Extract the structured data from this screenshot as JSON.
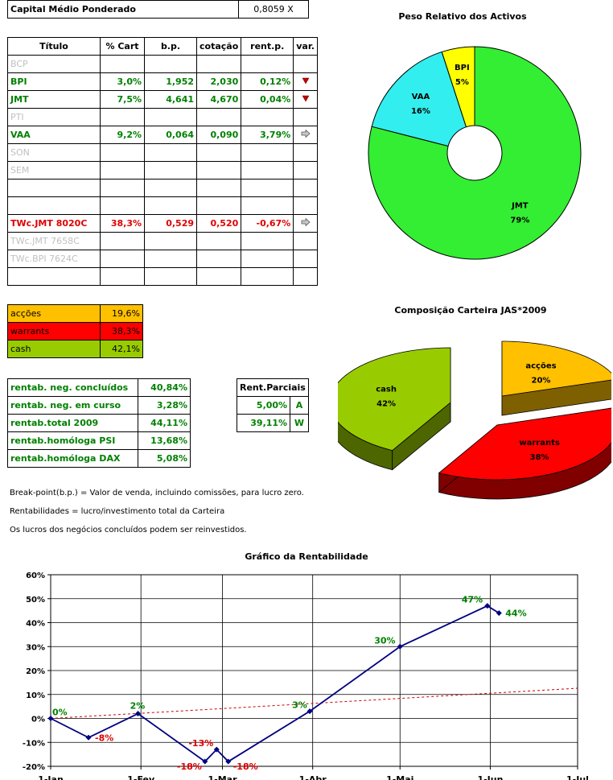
{
  "header": {
    "label": "Capital Médio Ponderado",
    "value": "0,8059 X"
  },
  "assets_table": {
    "headers": [
      "Título",
      "% Cart",
      "b.p.",
      "cotação",
      "rent.p.",
      "var."
    ],
    "rows": [
      {
        "titulo": "BCP",
        "cart": "",
        "bp": "",
        "cot": "",
        "rent": "",
        "var": "",
        "style": "grey"
      },
      {
        "titulo": "BPI",
        "cart": "3,0%",
        "bp": "1,952",
        "cot": "2,030",
        "rent": "0,12%",
        "var": "down",
        "style": "green"
      },
      {
        "titulo": "JMT",
        "cart": "7,5%",
        "bp": "4,641",
        "cot": "4,670",
        "rent": "0,04%",
        "var": "down",
        "style": "green"
      },
      {
        "titulo": "PTI",
        "cart": "",
        "bp": "",
        "cot": "",
        "rent": "",
        "var": "",
        "style": "grey"
      },
      {
        "titulo": "VAA",
        "cart": "9,2%",
        "bp": "0,064",
        "cot": "0,090",
        "rent": "3,79%",
        "var": "right",
        "style": "green"
      },
      {
        "titulo": "SON",
        "cart": "",
        "bp": "",
        "cot": "",
        "rent": "",
        "var": "",
        "style": "grey"
      },
      {
        "titulo": "SEM",
        "cart": "",
        "bp": "",
        "cot": "",
        "rent": "",
        "var": "",
        "style": "grey"
      },
      {
        "titulo": "",
        "cart": "",
        "bp": "",
        "cot": "",
        "rent": "",
        "var": "",
        "style": "grey"
      },
      {
        "titulo": "",
        "cart": "",
        "bp": "",
        "cot": "",
        "rent": "",
        "var": "",
        "style": "grey"
      },
      {
        "titulo": "TWc.JMT 8020C",
        "cart": "38,3%",
        "bp": "0,529",
        "cot": "0,520",
        "rent": "-0,67%",
        "var": "right",
        "style": "red"
      },
      {
        "titulo": "TWc.JMT 7658C",
        "cart": "",
        "bp": "",
        "cot": "",
        "rent": "",
        "var": "",
        "style": "grey"
      },
      {
        "titulo": "TWc.BPI 7624C",
        "cart": "",
        "bp": "",
        "cot": "",
        "rent": "",
        "var": "",
        "style": "grey"
      },
      {
        "titulo": "",
        "cart": "",
        "bp": "",
        "cot": "",
        "rent": "",
        "var": "",
        "style": "grey"
      }
    ]
  },
  "allocation": [
    {
      "label": "acções",
      "value": "19,6%",
      "color": "#ffc000"
    },
    {
      "label": "warrants",
      "value": "38,3%",
      "color": "#ff0000"
    },
    {
      "label": "cash",
      "value": "42,1%",
      "color": "#99cc00"
    }
  ],
  "returns": [
    {
      "label": "rentab. neg. concluídos",
      "value": "40,84%"
    },
    {
      "label": "rentab. neg. em curso",
      "value": "3,28%"
    },
    {
      "label": "rentab.total 2009",
      "value": "44,11%"
    },
    {
      "label": "rentab.homóloga PSI",
      "value": "13,68%"
    },
    {
      "label": "rentab.homóloga DAX",
      "value": "5,08%"
    }
  ],
  "partials": {
    "header": "Rent.Parciais",
    "rows": [
      {
        "value": "5,00%",
        "code": "A"
      },
      {
        "value": "39,11%",
        "code": "W"
      }
    ]
  },
  "notes": [
    "Break-point(b.p.) = Valor de venda, incluindo comissões, para lucro zero.",
    "Rentabilidades = lucro/investimento total da Carteira",
    "Os lucros dos negócios concluídos podem ser reinvestidos."
  ],
  "chart_data": [
    {
      "type": "pie",
      "subtype": "doughnut",
      "title": "Peso Relativo dos Activos",
      "slices": [
        {
          "label": "JMT",
          "value": 79,
          "display": "79%",
          "color": "#33ee33"
        },
        {
          "label": "VAA",
          "value": 16,
          "display": "16%",
          "color": "#33eeee"
        },
        {
          "label": "BPI",
          "value": 5,
          "display": "5%",
          "color": "#ffff00"
        }
      ]
    },
    {
      "type": "pie",
      "subtype": "3d-exploded",
      "title": "Composição Carteira JAS*2009",
      "slices": [
        {
          "label": "acções",
          "value": 20,
          "display": "20%",
          "color": "#ffc000",
          "side": "#7f6000"
        },
        {
          "label": "warrants",
          "value": 38,
          "display": "38%",
          "color": "#ff0000",
          "side": "#800000"
        },
        {
          "label": "cash",
          "value": 42,
          "display": "42%",
          "color": "#99cc00",
          "side": "#4d6600"
        }
      ]
    },
    {
      "type": "line",
      "title": "Gráfico da Rentabilidade",
      "x_tick_labels": [
        "1-Jan",
        "1-Fev",
        "1-Mar",
        "1-Abr",
        "1-Mai",
        "1-Jun",
        "1-Jul"
      ],
      "x_ticks_day": [
        0,
        31,
        59,
        90,
        120,
        151,
        181
      ],
      "ylim": [
        -20,
        60
      ],
      "y_tick_labels": [
        "-20%",
        "-10%",
        "0%",
        "10%",
        "20%",
        "30%",
        "40%",
        "50%",
        "60%"
      ],
      "grid": true,
      "series": [
        {
          "color": "#000080",
          "points": [
            {
              "day": 0,
              "value": 0,
              "label": "0%",
              "label_color": "#008000"
            },
            {
              "day": 13,
              "value": -8,
              "label": "-8%",
              "label_color": "#e00000"
            },
            {
              "day": 30,
              "value": 2,
              "label": "2%",
              "label_color": "#008000"
            },
            {
              "day": 53,
              "value": -18,
              "label": "-18%",
              "label_color": "#e00000"
            },
            {
              "day": 57,
              "value": -13,
              "label": "-13%",
              "label_color": "#e00000"
            },
            {
              "day": 61,
              "value": -18,
              "label": "-18%",
              "label_color": "#e00000"
            },
            {
              "day": 89,
              "value": 3,
              "label": "3%",
              "label_color": "#008000"
            },
            {
              "day": 120,
              "value": 30,
              "label": "30%",
              "label_color": "#008000"
            },
            {
              "day": 150,
              "value": 47,
              "label": "47%",
              "label_color": "#008000"
            },
            {
              "day": 154,
              "value": 44,
              "label": "44%",
              "label_color": "#008000"
            }
          ]
        },
        {
          "style": "dashed-trend",
          "color": "#cc0000",
          "points": [
            {
              "day": 0,
              "value": 0
            },
            {
              "day": 181,
              "value": 12.6
            }
          ]
        }
      ]
    }
  ]
}
